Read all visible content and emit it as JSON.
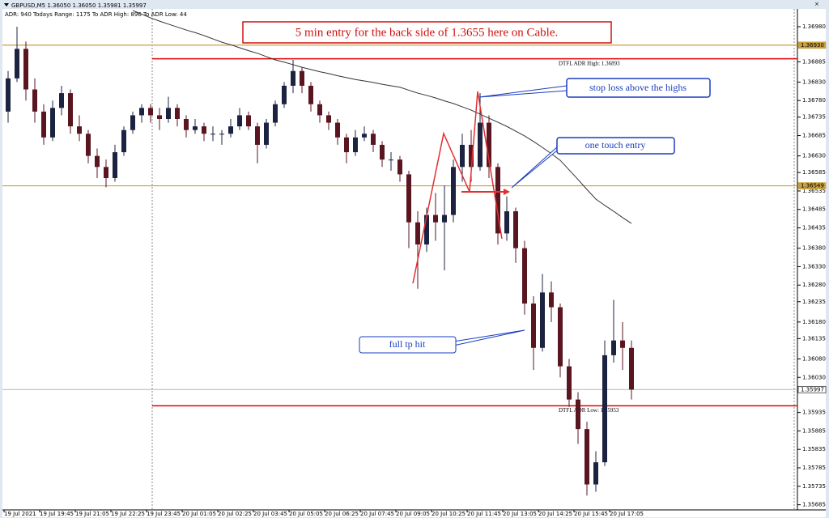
{
  "chart_data": {
    "type": "candlestick",
    "header_symbol": "GBPUSD,M5  1.36050 1.36050 1.35981 1.35997",
    "header_info": "ADR: 940  Todays Range: 1175  To ADR High: 896  To ADR Low: 44",
    "title": "5 min entry for the back side of 1.3655 here on Cable.",
    "annotations": [
      "stop loss above the highs",
      "one touch entry",
      "full tp hit"
    ],
    "categories": [
      "19 Jul 2021",
      null,
      null,
      null,
      "19 Jul 19:45",
      null,
      null,
      null,
      "19 Jul 21:05",
      null,
      null,
      null,
      "19 Jul 22:25",
      null,
      null,
      null,
      "19 Jul 23:45",
      null,
      null,
      null,
      "20 Jul 01:05",
      null,
      null,
      null,
      "20 Jul 02:25",
      null,
      null,
      null,
      "20 Jul 03:45",
      null,
      null,
      null,
      "20 Jul 05:05",
      null,
      null,
      null,
      "20 Jul 06:25",
      null,
      null,
      null,
      "20 Jul 07:45",
      null,
      null,
      null,
      "20 Jul 09:05",
      null,
      null,
      null,
      "20 Jul 10:25",
      null,
      null,
      null,
      "20 Jul 11:45",
      null,
      null,
      null,
      "20 Jul 13:05",
      null,
      null,
      null,
      "20 Jul 14:25",
      null,
      null,
      null,
      "20 Jul 15:45",
      null,
      null,
      null,
      "20 Jul 17:05",
      null,
      null
    ],
    "open": [
      1.3675,
      1.3684,
      1.3692,
      1.3681,
      1.3675,
      1.3668,
      1.3676,
      1.368,
      1.3671,
      1.3669,
      1.3663,
      1.366,
      1.3657,
      1.3664,
      1.367,
      1.3674,
      1.3676,
      1.3674,
      1.3673,
      1.3676,
      1.3673,
      1.367,
      1.3671,
      1.3669,
      1.3669,
      1.3669,
      1.3671,
      1.3674,
      1.3671,
      1.3666,
      1.3672,
      1.3677,
      1.3682,
      1.3686,
      1.3682,
      1.3677,
      1.3674,
      1.3672,
      1.3668,
      1.3664,
      1.3668,
      1.3669,
      1.3666,
      1.3662,
      1.3662,
      1.3658,
      1.3645,
      1.3639,
      1.3647,
      1.3645,
      1.3647,
      1.366,
      1.3666,
      1.366,
      1.3672,
      1.366,
      1.3642,
      1.3648,
      1.3638,
      1.3623,
      1.3611,
      1.3626,
      1.3622,
      1.3606,
      1.3597,
      1.3589,
      1.3574,
      1.358,
      1.3609,
      1.3613,
      1.3611
    ],
    "high": [
      1.3686,
      1.3698,
      1.3694,
      1.3684,
      1.3677,
      1.3678,
      1.3682,
      1.3681,
      1.3674,
      1.367,
      1.3665,
      1.3662,
      1.3666,
      1.3671,
      1.3675,
      1.3677,
      1.3677,
      1.3676,
      1.3679,
      1.3677,
      1.3674,
      1.3673,
      1.3672,
      1.3671,
      1.367,
      1.3673,
      1.3676,
      1.3675,
      1.3672,
      1.3673,
      1.3678,
      1.3683,
      1.3689,
      1.3687,
      1.3683,
      1.3678,
      1.3675,
      1.3673,
      1.3669,
      1.367,
      1.3671,
      1.367,
      1.3667,
      1.3664,
      1.3663,
      1.3659,
      1.3648,
      1.3649,
      1.3653,
      1.3655,
      1.3662,
      1.3669,
      1.367,
      1.368,
      1.3674,
      1.3661,
      1.3652,
      1.3649,
      1.364,
      1.3625,
      1.3631,
      1.3629,
      1.3623,
      1.3608,
      1.3599,
      1.3591,
      1.3583,
      1.3613,
      1.3624,
      1.3618,
      1.3613
    ],
    "low": [
      1.3672,
      1.3683,
      1.3678,
      1.3672,
      1.3666,
      1.3667,
      1.3674,
      1.3669,
      1.3667,
      1.3661,
      1.3657,
      1.36545,
      1.3656,
      1.3663,
      1.3669,
      1.3672,
      1.3672,
      1.367,
      1.3672,
      1.3671,
      1.3668,
      1.3669,
      1.3667,
      1.3667,
      1.3666,
      1.3668,
      1.367,
      1.367,
      1.3661,
      1.3665,
      1.3671,
      1.3676,
      1.368,
      1.368,
      1.3675,
      1.3672,
      1.367,
      1.3666,
      1.3661,
      1.3663,
      1.3667,
      1.3664,
      1.366,
      1.3659,
      1.3656,
      1.3638,
      1.3627,
      1.3637,
      1.364,
      1.3632,
      1.3645,
      1.3656,
      1.3656,
      1.3659,
      1.3657,
      1.3639,
      1.364,
      1.3634,
      1.362,
      1.3605,
      1.361,
      1.3618,
      1.3603,
      1.3595,
      1.3585,
      1.3571,
      1.3572,
      1.3579,
      1.3607,
      1.3605,
      1.3597
    ],
    "close": [
      1.3684,
      1.3692,
      1.3681,
      1.3675,
      1.3668,
      1.3676,
      1.368,
      1.3671,
      1.3669,
      1.3663,
      1.366,
      1.3657,
      1.3664,
      1.367,
      1.3674,
      1.3676,
      1.3674,
      1.3673,
      1.3676,
      1.3673,
      1.367,
      1.3671,
      1.3669,
      1.3669,
      1.3669,
      1.3671,
      1.3674,
      1.3671,
      1.3666,
      1.3672,
      1.3677,
      1.3682,
      1.3686,
      1.3682,
      1.3677,
      1.3674,
      1.3672,
      1.3668,
      1.3664,
      1.3668,
      1.3669,
      1.3666,
      1.3662,
      1.3662,
      1.3658,
      1.3645,
      1.3639,
      1.3647,
      1.3645,
      1.3647,
      1.366,
      1.3666,
      1.366,
      1.3672,
      1.366,
      1.3642,
      1.3648,
      1.3638,
      1.3623,
      1.3611,
      1.3626,
      1.3622,
      1.3606,
      1.3597,
      1.3589,
      1.3574,
      1.358,
      1.3609,
      1.3613,
      1.3611,
      1.35997
    ],
    "up_color": "#1c2340",
    "down_color": "#5a1620",
    "ma": {
      "color": "#333333",
      "values": [
        null,
        null,
        null,
        null,
        null,
        null,
        null,
        null,
        null,
        null,
        null,
        null,
        null,
        null,
        1.37024,
        1.37014,
        1.37004,
        1.36995,
        1.36987,
        1.36979,
        1.36971,
        1.36964,
        1.36956,
        1.36947,
        1.36938,
        1.36931,
        1.36923,
        1.36915,
        1.36908,
        1.36899,
        1.3689,
        1.36884,
        1.36877,
        1.3687,
        1.36864,
        1.36858,
        1.36853,
        1.36847,
        1.36842,
        1.36837,
        1.36833,
        1.36829,
        1.36824,
        1.3682,
        1.36816,
        1.36808,
        1.368,
        1.36794,
        1.36787,
        1.36779,
        1.36772,
        1.36763,
        1.36754,
        1.36743,
        1.36732,
        1.36721,
        1.3671,
        1.36697,
        1.36684,
        1.36669,
        1.36653,
        1.36636,
        1.36618,
        1.36592,
        1.36566,
        1.36539,
        1.36513,
        1.36496,
        1.3648,
        1.36463,
        1.36447
      ]
    },
    "levels": [
      {
        "value": 1.3693,
        "label": "1.36930",
        "color": "#c8a040"
      },
      {
        "value": 1.36549,
        "label": "1.36549",
        "color": "#c8a040"
      },
      {
        "value": 1.35997,
        "label": "1.35997",
        "color": "#c0c0c0"
      }
    ],
    "adr_lines": [
      {
        "value": 1.36893,
        "label": "DTFL ADR High: 1.36893",
        "color": "#e00000"
      },
      {
        "value": 1.35953,
        "label": "DTFL ADR Low: 1.35953",
        "color": "#e00000"
      }
    ],
    "ylim": [
      1.35671,
      1.37026
    ],
    "yticks": [
      {
        "value": 1.3698,
        "label": "1.36980"
      },
      1.36885,
      {
        "value": 1.3683,
        "label": "1.36830"
      },
      {
        "value": 1.3678,
        "label": "1.36780"
      },
      1.36735,
      1.36685,
      {
        "value": 1.3663,
        "label": "1.36630"
      },
      1.36585,
      1.36535,
      1.36485,
      1.36435,
      {
        "value": 1.3638,
        "label": "1.36380"
      },
      {
        "value": 1.3633,
        "label": "1.36330"
      },
      {
        "value": 1.3628,
        "label": "1.36280"
      },
      1.36235,
      {
        "value": 1.3618,
        "label": "1.36180"
      },
      1.36135,
      {
        "value": 1.3608,
        "label": "1.36080"
      },
      {
        "value": 1.3603,
        "label": "1.36030"
      },
      1.35935,
      1.35885,
      1.35835,
      1.35785,
      1.35735,
      1.35685
    ]
  }
}
